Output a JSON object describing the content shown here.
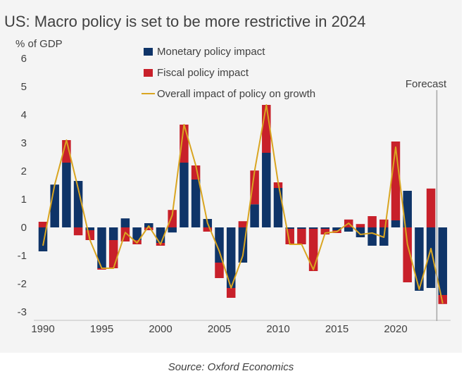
{
  "title": "US: Macro policy is set to be more restrictive in 2024",
  "source": "Source: Oxford Economics",
  "colors": {
    "monetary": "#0f3468",
    "fiscal": "#c8202a",
    "overall": "#d9a521",
    "forecast_line": "#a6a6a6",
    "background": "#f4f4f4"
  },
  "chart_data": {
    "type": "bar",
    "subtype": "stacked bar with line overlay",
    "title": "US: Macro policy is set to be more restrictive in 2024",
    "ylabel": "% of GDP",
    "xlabel": "",
    "ylim": [
      -3,
      6
    ],
    "yticks": [
      "-3",
      "-2",
      "-1",
      "0",
      "1",
      "2",
      "3",
      "4",
      "5",
      "6"
    ],
    "xticks": [
      "1990",
      "1995",
      "2000",
      "2005",
      "2010",
      "2015",
      "2020"
    ],
    "xtick_years": [
      1990,
      1995,
      2000,
      2005,
      2010,
      2015,
      2020
    ],
    "forecast_label": "Forecast",
    "forecast_after_year": 2023,
    "legend_position": "top-center",
    "categories": [
      1990,
      1991,
      1992,
      1993,
      1994,
      1995,
      1996,
      1997,
      1998,
      1999,
      2000,
      2001,
      2002,
      2003,
      2004,
      2005,
      2006,
      2007,
      2008,
      2009,
      2010,
      2011,
      2012,
      2013,
      2014,
      2015,
      2016,
      2017,
      2018,
      2019,
      2020,
      2021,
      2022,
      2023,
      2024
    ],
    "series": [
      {
        "name": "Monetary policy impact",
        "kind": "bar",
        "values": [
          -0.85,
          1.52,
          2.3,
          1.65,
          -0.1,
          -1.45,
          -0.45,
          0.32,
          -0.45,
          0.15,
          -0.55,
          -0.18,
          2.3,
          1.7,
          0.3,
          -1.25,
          -2.15,
          -1.25,
          0.82,
          2.65,
          1.4,
          -0.05,
          -0.05,
          -0.05,
          -0.05,
          -0.1,
          -0.15,
          -0.35,
          -0.65,
          -0.65,
          0.25,
          1.3,
          -2.25,
          -2.15,
          -2.4
        ]
      },
      {
        "name": "Fiscal policy impact",
        "kind": "bar",
        "values": [
          0.2,
          0.0,
          0.8,
          -0.28,
          -0.35,
          -0.05,
          -1.0,
          -0.5,
          -0.15,
          -0.1,
          -0.1,
          0.62,
          1.35,
          0.5,
          -0.15,
          -0.55,
          -0.35,
          0.22,
          1.2,
          1.7,
          0.2,
          -0.55,
          -0.55,
          -1.5,
          -0.2,
          -0.1,
          0.28,
          0.12,
          0.4,
          0.28,
          2.8,
          -1.95,
          0.0,
          1.38,
          -0.32
        ]
      },
      {
        "name": "Overall impact of policy on growth",
        "kind": "line",
        "values": [
          -0.65,
          1.52,
          3.1,
          1.37,
          -0.45,
          -1.45,
          -1.45,
          -0.18,
          -0.55,
          0.05,
          -0.6,
          0.44,
          3.65,
          2.2,
          0.15,
          -0.85,
          -2.15,
          -1.0,
          2.0,
          4.35,
          1.6,
          -0.6,
          -0.6,
          -1.5,
          -0.2,
          -0.15,
          0.15,
          -0.25,
          -0.2,
          -0.35,
          2.85,
          -0.6,
          -2.2,
          -0.75,
          -2.7
        ]
      }
    ]
  }
}
